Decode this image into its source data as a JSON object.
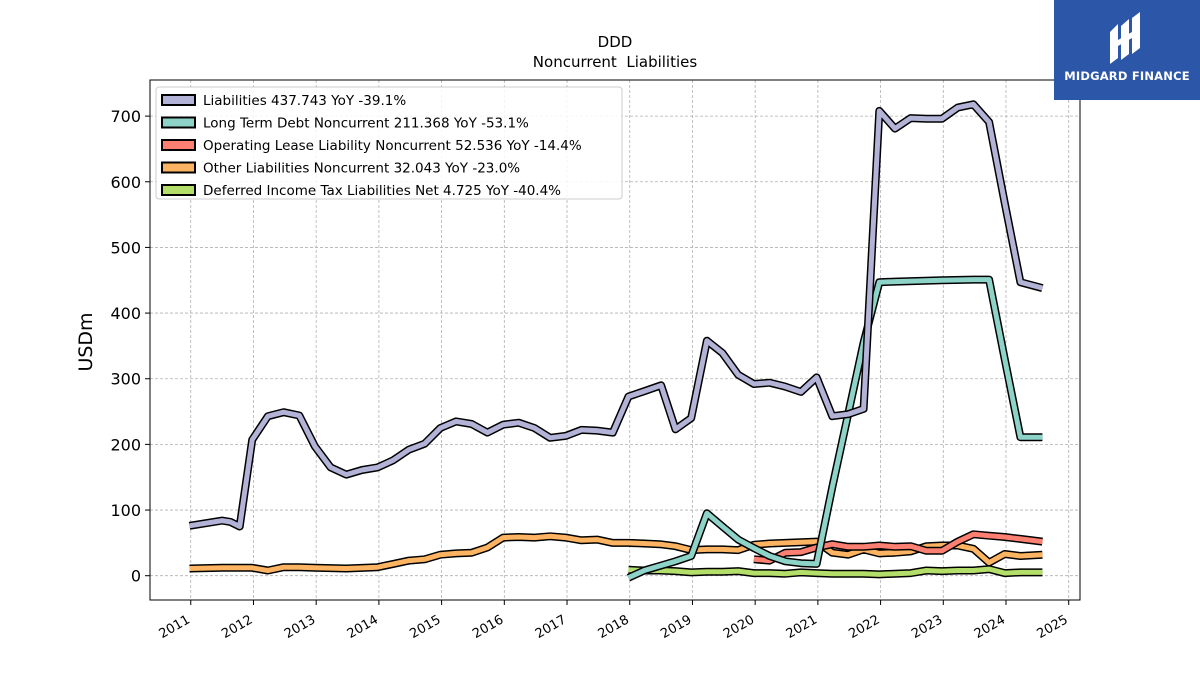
{
  "brand": {
    "name": "MIDGARD FINANCE",
    "bg_color": "#2c56a8"
  },
  "chart_data": {
    "type": "line",
    "title": "DDD",
    "subtitle": "Noncurrent  Liabilities",
    "xlabel": "",
    "ylabel": "USDm",
    "xlim": [
      2010.35,
      2025.18
    ],
    "ylim": [
      -37,
      755
    ],
    "x_ticks": [
      "2011",
      "2012",
      "2013",
      "2014",
      "2015",
      "2016",
      "2017",
      "2018",
      "2019",
      "2020",
      "2021",
      "2022",
      "2023",
      "2024",
      "2025"
    ],
    "y_ticks": [
      "0",
      "100",
      "200",
      "300",
      "400",
      "500",
      "600",
      "700"
    ],
    "grid": true,
    "legend_position": "top-left",
    "series": [
      {
        "name": "Liabilities",
        "legend_label": "Liabilities  437.743 YoY -39.1%",
        "color": "#b3b3d7",
        "points": [
          [
            2010.98,
            76
          ],
          [
            2011.5,
            84
          ],
          [
            2011.63,
            82
          ],
          [
            2011.78,
            75
          ],
          [
            2011.98,
            207
          ],
          [
            2012.23,
            243
          ],
          [
            2012.48,
            249
          ],
          [
            2012.73,
            244
          ],
          [
            2012.98,
            197
          ],
          [
            2013.23,
            165
          ],
          [
            2013.48,
            154
          ],
          [
            2013.73,
            161
          ],
          [
            2013.98,
            165
          ],
          [
            2014.23,
            176
          ],
          [
            2014.48,
            192
          ],
          [
            2014.73,
            201
          ],
          [
            2014.98,
            225
          ],
          [
            2015.23,
            235
          ],
          [
            2015.48,
            231
          ],
          [
            2015.73,
            218
          ],
          [
            2015.98,
            230
          ],
          [
            2016.23,
            233
          ],
          [
            2016.48,
            225
          ],
          [
            2016.73,
            210
          ],
          [
            2016.98,
            213
          ],
          [
            2017.23,
            222
          ],
          [
            2017.48,
            221
          ],
          [
            2017.73,
            218
          ],
          [
            2017.98,
            273
          ],
          [
            2018.23,
            281
          ],
          [
            2018.5,
            290
          ],
          [
            2018.73,
            223
          ],
          [
            2018.98,
            240
          ],
          [
            2019.23,
            358
          ],
          [
            2019.48,
            339
          ],
          [
            2019.73,
            306
          ],
          [
            2019.98,
            292
          ],
          [
            2020.23,
            294
          ],
          [
            2020.48,
            288
          ],
          [
            2020.73,
            280
          ],
          [
            2020.98,
            302
          ],
          [
            2021.23,
            243
          ],
          [
            2021.48,
            246
          ],
          [
            2021.73,
            254
          ],
          [
            2021.98,
            708
          ],
          [
            2022.23,
            681
          ],
          [
            2022.48,
            697
          ],
          [
            2022.73,
            696
          ],
          [
            2022.98,
            696
          ],
          [
            2023.23,
            713
          ],
          [
            2023.48,
            718
          ],
          [
            2023.73,
            691
          ],
          [
            2023.98,
            568
          ],
          [
            2024.23,
            447
          ],
          [
            2024.58,
            438
          ]
        ]
      },
      {
        "name": "Long Term Debt Noncurrent",
        "legend_label": "Long Term Debt Noncurrent  211.368 YoY -53.1%",
        "color": "#8dd3c7",
        "points": [
          [
            2017.98,
            -3
          ],
          [
            2018.23,
            8
          ],
          [
            2018.48,
            15
          ],
          [
            2018.73,
            22
          ],
          [
            2018.98,
            30
          ],
          [
            2019.23,
            95
          ],
          [
            2019.48,
            75
          ],
          [
            2019.73,
            55
          ],
          [
            2019.98,
            42
          ],
          [
            2020.23,
            30
          ],
          [
            2020.48,
            22
          ],
          [
            2020.73,
            19
          ],
          [
            2020.98,
            18
          ],
          [
            2021.23,
            135
          ],
          [
            2021.48,
            245
          ],
          [
            2021.73,
            355
          ],
          [
            2021.98,
            447
          ],
          [
            2022.23,
            448
          ],
          [
            2022.98,
            450
          ],
          [
            2023.48,
            451
          ],
          [
            2023.73,
            451
          ],
          [
            2023.98,
            330
          ],
          [
            2024.23,
            211
          ],
          [
            2024.58,
            211
          ]
        ]
      },
      {
        "name": "Operating Lease Liability Noncurrent",
        "legend_label": "Operating Lease Liability Noncurrent  52.536 YoY -14.4%",
        "color": "#fb8072",
        "points": [
          [
            2019.98,
            25
          ],
          [
            2020.23,
            23
          ],
          [
            2020.48,
            35
          ],
          [
            2020.73,
            36
          ],
          [
            2020.98,
            43
          ],
          [
            2021.23,
            48
          ],
          [
            2021.48,
            44
          ],
          [
            2021.73,
            44
          ],
          [
            2021.98,
            46
          ],
          [
            2022.23,
            44
          ],
          [
            2022.48,
            45
          ],
          [
            2022.73,
            38
          ],
          [
            2022.98,
            38
          ],
          [
            2023.23,
            52
          ],
          [
            2023.48,
            63
          ],
          [
            2023.73,
            61
          ],
          [
            2023.98,
            59
          ],
          [
            2024.23,
            56
          ],
          [
            2024.58,
            52
          ]
        ]
      },
      {
        "name": "Other Liabilities Noncurrent",
        "legend_label": "Other Liabilities Noncurrent  32.043 YoY -23.0%",
        "color": "#fdb462",
        "points": [
          [
            2010.98,
            11
          ],
          [
            2011.5,
            12
          ],
          [
            2011.98,
            12
          ],
          [
            2012.23,
            8
          ],
          [
            2012.48,
            13
          ],
          [
            2012.73,
            13
          ],
          [
            2012.98,
            12
          ],
          [
            2013.48,
            11
          ],
          [
            2013.98,
            13
          ],
          [
            2014.23,
            18
          ],
          [
            2014.48,
            23
          ],
          [
            2014.73,
            25
          ],
          [
            2014.98,
            32
          ],
          [
            2015.23,
            34
          ],
          [
            2015.48,
            35
          ],
          [
            2015.73,
            43
          ],
          [
            2015.98,
            58
          ],
          [
            2016.23,
            59
          ],
          [
            2016.48,
            58
          ],
          [
            2016.73,
            60
          ],
          [
            2016.98,
            58
          ],
          [
            2017.23,
            54
          ],
          [
            2017.48,
            55
          ],
          [
            2017.73,
            50
          ],
          [
            2017.98,
            50
          ],
          [
            2018.23,
            49
          ],
          [
            2018.48,
            48
          ],
          [
            2018.73,
            45
          ],
          [
            2018.98,
            39
          ],
          [
            2019.23,
            40
          ],
          [
            2019.48,
            40
          ],
          [
            2019.73,
            39
          ],
          [
            2019.98,
            47
          ],
          [
            2020.23,
            49
          ],
          [
            2020.48,
            50
          ],
          [
            2020.73,
            51
          ],
          [
            2020.98,
            52
          ],
          [
            2021.23,
            35
          ],
          [
            2021.48,
            32
          ],
          [
            2021.73,
            40
          ],
          [
            2021.98,
            34
          ],
          [
            2022.23,
            35
          ],
          [
            2022.48,
            37
          ],
          [
            2022.73,
            45
          ],
          [
            2022.98,
            46
          ],
          [
            2023.23,
            46
          ],
          [
            2023.48,
            41
          ],
          [
            2023.73,
            20
          ],
          [
            2023.98,
            33
          ],
          [
            2024.23,
            30
          ],
          [
            2024.58,
            32
          ]
        ]
      },
      {
        "name": "Deferred Income Tax Liabilities Net",
        "legend_label": "Deferred Income Tax Liabilities Net  4.725 YoY -40.4%",
        "color": "#b3de69",
        "points": [
          [
            2017.98,
            9
          ],
          [
            2018.23,
            8
          ],
          [
            2018.48,
            8
          ],
          [
            2018.73,
            7
          ],
          [
            2018.98,
            5
          ],
          [
            2019.23,
            6
          ],
          [
            2019.48,
            6
          ],
          [
            2019.73,
            7
          ],
          [
            2019.98,
            4
          ],
          [
            2020.23,
            4
          ],
          [
            2020.48,
            3
          ],
          [
            2020.73,
            5
          ],
          [
            2020.98,
            4
          ],
          [
            2021.23,
            3
          ],
          [
            2021.48,
            3
          ],
          [
            2021.73,
            3
          ],
          [
            2021.98,
            2
          ],
          [
            2022.23,
            3
          ],
          [
            2022.48,
            4
          ],
          [
            2022.73,
            8
          ],
          [
            2022.98,
            7
          ],
          [
            2023.23,
            8
          ],
          [
            2023.48,
            8
          ],
          [
            2023.73,
            10
          ],
          [
            2023.98,
            4
          ],
          [
            2024.23,
            5
          ],
          [
            2024.58,
            5
          ]
        ]
      }
    ]
  }
}
